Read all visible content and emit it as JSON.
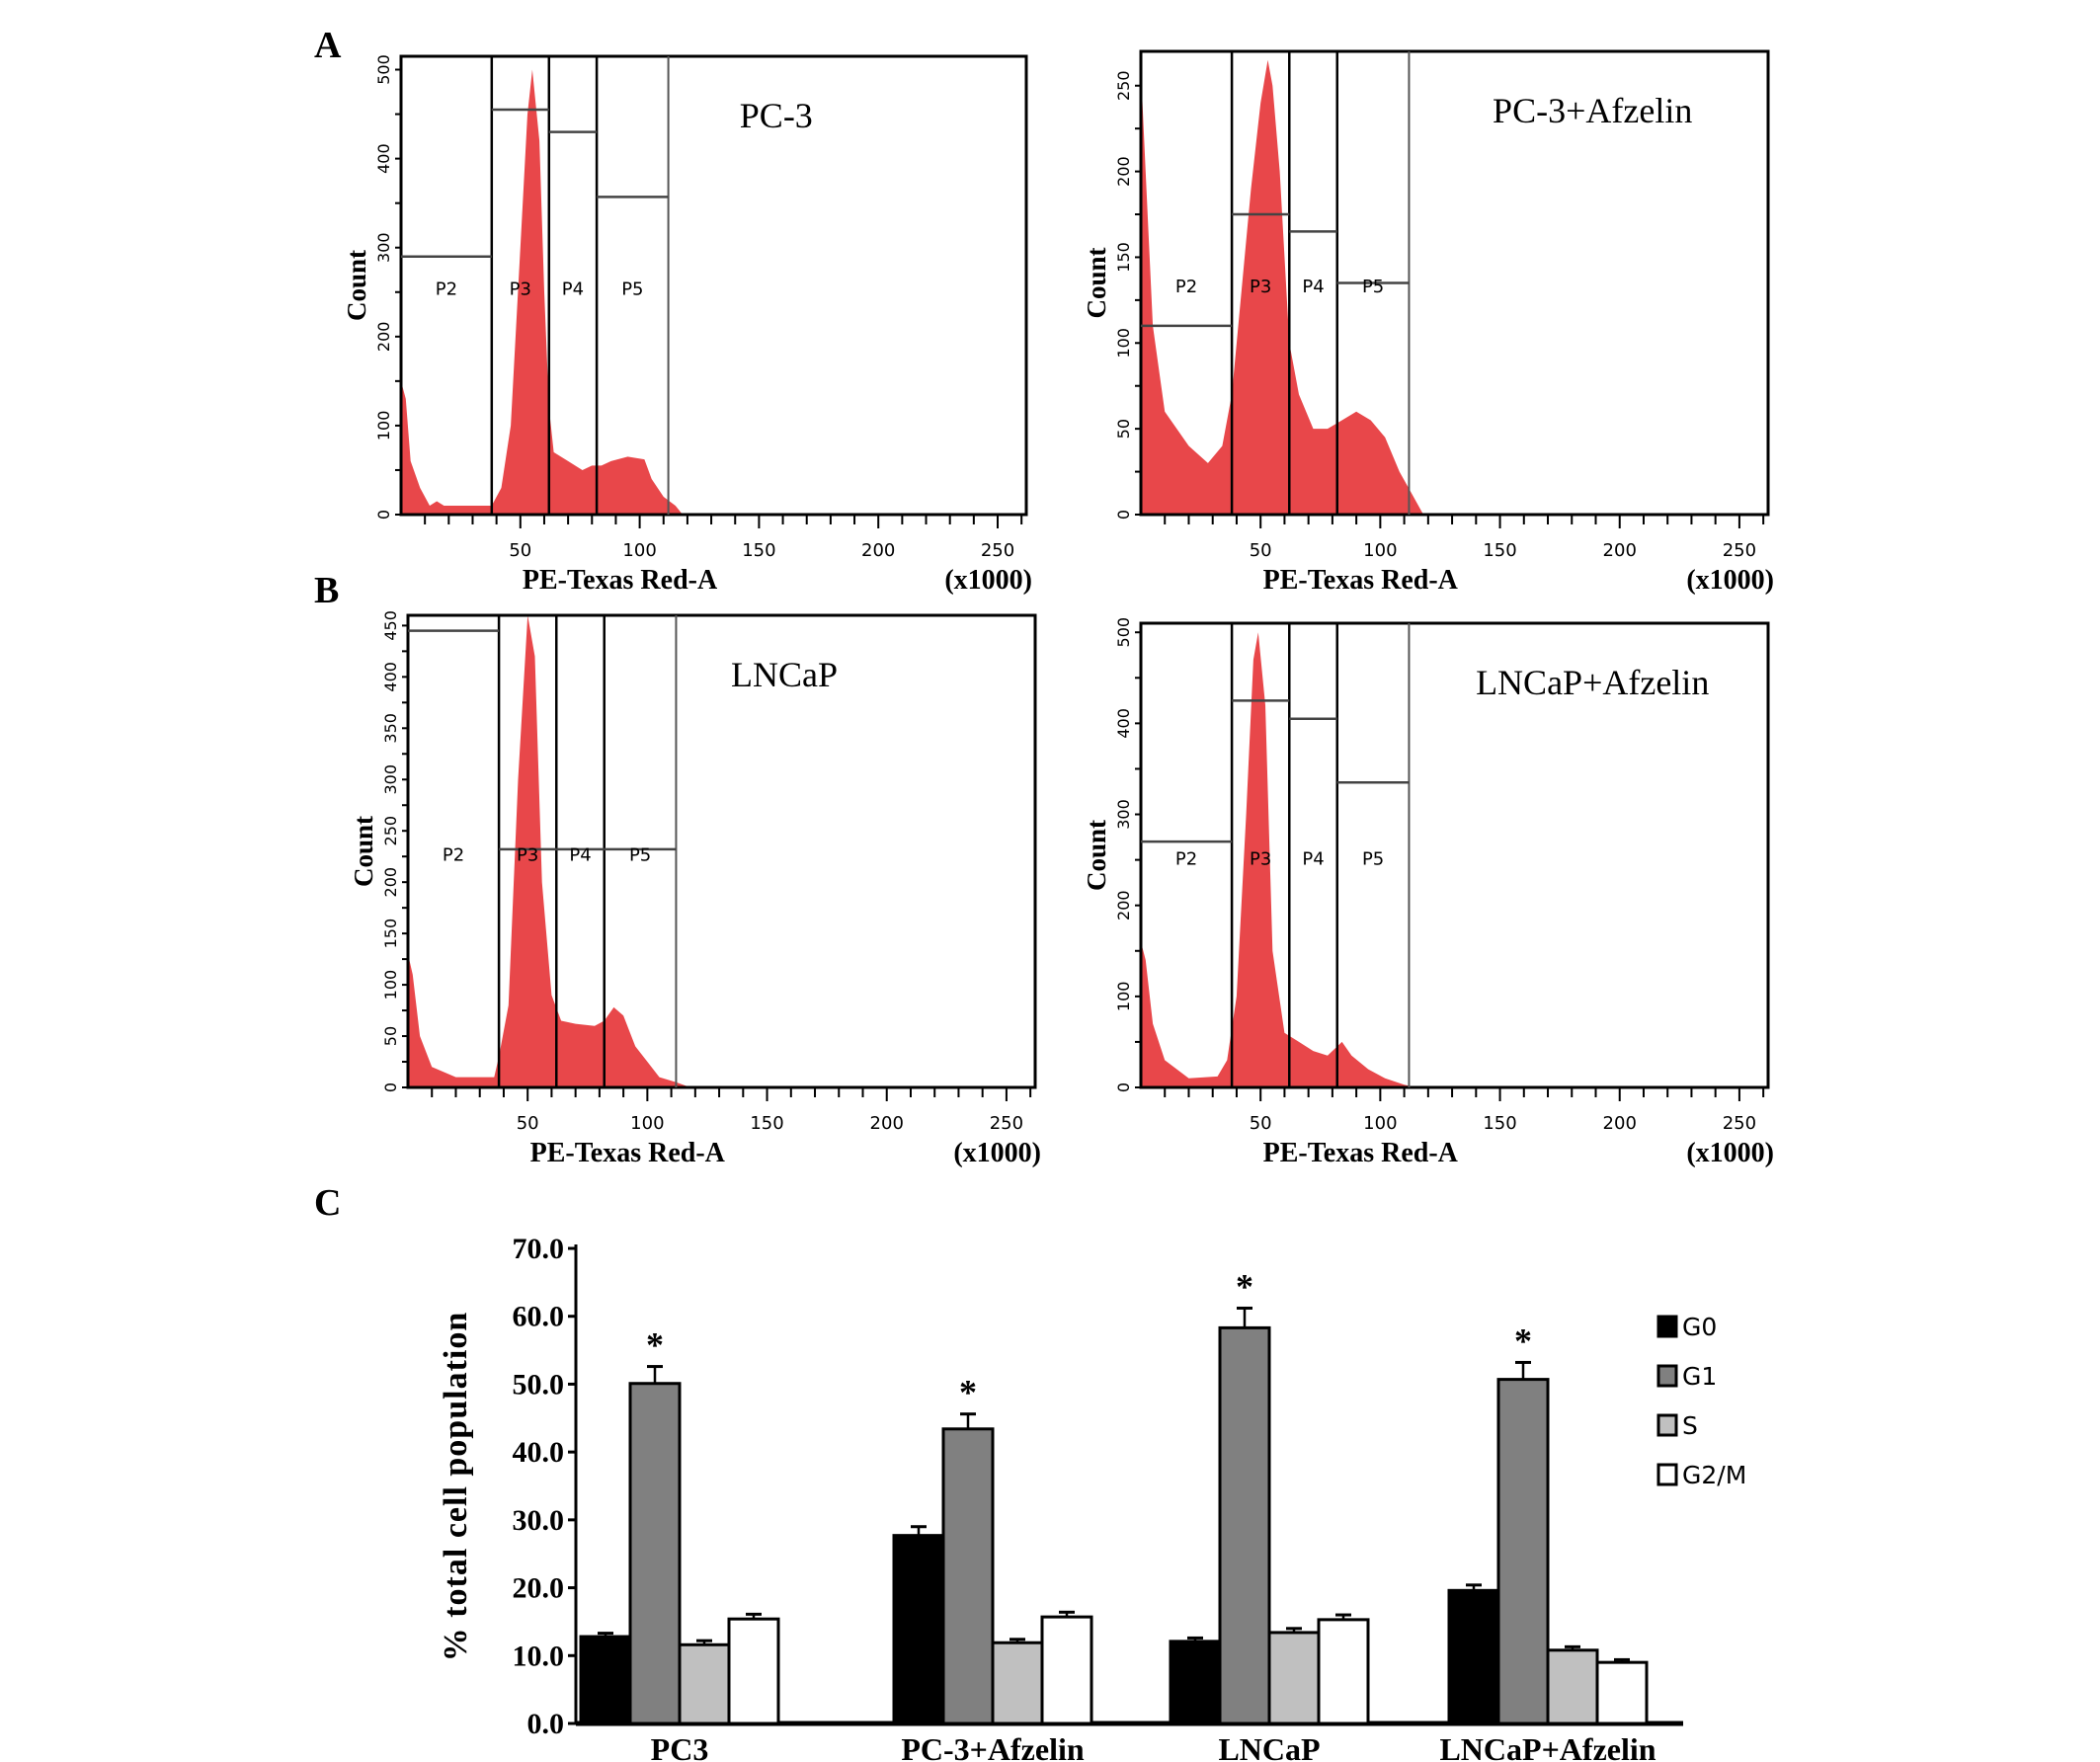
{
  "panels": {
    "a": "A",
    "b": "B",
    "c": "C"
  },
  "chart_data": [
    {
      "type": "area",
      "panel": "A",
      "title": "PC-3",
      "xlabel": "PE-Texas Red-A",
      "xunit": "(x1000)",
      "ylabel": "Count",
      "xlim": [
        0,
        262
      ],
      "ylim": [
        0,
        515
      ],
      "xticks": [
        50,
        100,
        150,
        200,
        250
      ],
      "yticks": [
        0,
        100,
        200,
        300,
        400,
        500
      ],
      "color": "#e8474a",
      "gates": [
        {
          "name": "P2",
          "from": 0,
          "to": 38,
          "level": 290
        },
        {
          "name": "P3",
          "from": 38,
          "to": 62,
          "level": 455
        },
        {
          "name": "P4",
          "from": 62,
          "to": 82,
          "level": 430
        },
        {
          "name": "P5",
          "from": 82,
          "to": 112,
          "level": 357
        }
      ],
      "points": [
        [
          0,
          150
        ],
        [
          2,
          130
        ],
        [
          4,
          60
        ],
        [
          8,
          30
        ],
        [
          12,
          10
        ],
        [
          15,
          15
        ],
        [
          18,
          10
        ],
        [
          38,
          10
        ],
        [
          42,
          30
        ],
        [
          46,
          100
        ],
        [
          50,
          300
        ],
        [
          53,
          450
        ],
        [
          55,
          500
        ],
        [
          58,
          420
        ],
        [
          60,
          250
        ],
        [
          62,
          120
        ],
        [
          64,
          70
        ],
        [
          70,
          60
        ],
        [
          76,
          50
        ],
        [
          80,
          55
        ],
        [
          84,
          55
        ],
        [
          88,
          60
        ],
        [
          95,
          65
        ],
        [
          102,
          62
        ],
        [
          105,
          40
        ],
        [
          110,
          20
        ],
        [
          115,
          10
        ],
        [
          118,
          0
        ]
      ]
    },
    {
      "type": "area",
      "panel": "A",
      "title": "PC-3+Afzelin",
      "xlabel": "PE-Texas Red-A",
      "xunit": "(x1000)",
      "ylabel": "Count",
      "xlim": [
        0,
        262
      ],
      "ylim": [
        0,
        270
      ],
      "xticks": [
        50,
        100,
        150,
        200,
        250
      ],
      "yticks": [
        0,
        50,
        100,
        150,
        200,
        250
      ],
      "color": "#e8474a",
      "gates": [
        {
          "name": "P2",
          "from": 0,
          "to": 38,
          "level": 110
        },
        {
          "name": "P3",
          "from": 38,
          "to": 62,
          "level": 175
        },
        {
          "name": "P4",
          "from": 62,
          "to": 82,
          "level": 165
        },
        {
          "name": "P5",
          "from": 82,
          "to": 112,
          "level": 135
        }
      ],
      "points": [
        [
          0,
          260
        ],
        [
          2,
          200
        ],
        [
          5,
          110
        ],
        [
          10,
          60
        ],
        [
          20,
          40
        ],
        [
          28,
          30
        ],
        [
          34,
          40
        ],
        [
          38,
          70
        ],
        [
          42,
          130
        ],
        [
          46,
          190
        ],
        [
          50,
          240
        ],
        [
          53,
          265
        ],
        [
          55,
          250
        ],
        [
          58,
          200
        ],
        [
          62,
          100
        ],
        [
          66,
          70
        ],
        [
          72,
          50
        ],
        [
          78,
          50
        ],
        [
          84,
          55
        ],
        [
          90,
          60
        ],
        [
          96,
          55
        ],
        [
          102,
          45
        ],
        [
          108,
          25
        ],
        [
          112,
          15
        ],
        [
          118,
          0
        ]
      ]
    },
    {
      "type": "area",
      "panel": "B",
      "title": "LNCaP",
      "xlabel": "PE-Texas Red-A",
      "xunit": "(x1000)",
      "ylabel": "Count",
      "xlim": [
        0,
        262
      ],
      "ylim": [
        0,
        460
      ],
      "xticks": [
        50,
        100,
        150,
        200,
        250
      ],
      "yticks": [
        0,
        50,
        100,
        150,
        200,
        250,
        300,
        350,
        400,
        450
      ],
      "color": "#e8474a",
      "gates": [
        {
          "name": "P2",
          "from": 0,
          "to": 38,
          "level": 445
        },
        {
          "name": "P3",
          "from": 38,
          "to": 62,
          "level": 232
        },
        {
          "name": "P4",
          "from": 62,
          "to": 82,
          "level": 232
        },
        {
          "name": "P5",
          "from": 82,
          "to": 112,
          "level": 232
        }
      ],
      "points": [
        [
          0,
          130
        ],
        [
          2,
          110
        ],
        [
          5,
          50
        ],
        [
          10,
          20
        ],
        [
          20,
          10
        ],
        [
          36,
          10
        ],
        [
          38,
          30
        ],
        [
          42,
          80
        ],
        [
          46,
          300
        ],
        [
          50,
          460
        ],
        [
          53,
          420
        ],
        [
          56,
          200
        ],
        [
          60,
          90
        ],
        [
          64,
          65
        ],
        [
          70,
          62
        ],
        [
          78,
          60
        ],
        [
          82,
          65
        ],
        [
          86,
          78
        ],
        [
          90,
          70
        ],
        [
          95,
          40
        ],
        [
          100,
          25
        ],
        [
          105,
          10
        ],
        [
          112,
          5
        ],
        [
          118,
          0
        ]
      ]
    },
    {
      "type": "area",
      "panel": "B",
      "title": "LNCaP+Afzelin",
      "xlabel": "PE-Texas Red-A",
      "xunit": "(x1000)",
      "ylabel": "Count",
      "xlim": [
        0,
        262
      ],
      "ylim": [
        0,
        510
      ],
      "xticks": [
        50,
        100,
        150,
        200,
        250
      ],
      "yticks": [
        0,
        100,
        200,
        300,
        400,
        500
      ],
      "color": "#e8474a",
      "gates": [
        {
          "name": "P2",
          "from": 0,
          "to": 38,
          "level": 270
        },
        {
          "name": "P3",
          "from": 38,
          "to": 62,
          "level": 425
        },
        {
          "name": "P4",
          "from": 62,
          "to": 82,
          "level": 405
        },
        {
          "name": "P5",
          "from": 82,
          "to": 112,
          "level": 335
        }
      ],
      "points": [
        [
          0,
          160
        ],
        [
          2,
          140
        ],
        [
          5,
          70
        ],
        [
          10,
          30
        ],
        [
          20,
          10
        ],
        [
          32,
          12
        ],
        [
          36,
          30
        ],
        [
          40,
          100
        ],
        [
          44,
          300
        ],
        [
          47,
          470
        ],
        [
          49,
          500
        ],
        [
          52,
          420
        ],
        [
          55,
          150
        ],
        [
          60,
          60
        ],
        [
          66,
          50
        ],
        [
          72,
          40
        ],
        [
          78,
          35
        ],
        [
          84,
          50
        ],
        [
          88,
          35
        ],
        [
          95,
          20
        ],
        [
          102,
          10
        ],
        [
          110,
          3
        ],
        [
          115,
          0
        ]
      ]
    },
    {
      "type": "bar",
      "panel": "C",
      "ylabel": "% total cell population",
      "ylim": [
        0,
        70
      ],
      "yticks": [
        "0.0",
        "10.0",
        "20.0",
        "30.0",
        "40.0",
        "50.0",
        "60.0",
        "70.0"
      ],
      "categories": [
        "PC3",
        "PC-3+Afzelin",
        "LNCaP",
        "LNCaP+Afzelin"
      ],
      "legend": "right",
      "series": [
        {
          "name": "G0",
          "color": "#000000",
          "values": [
            12.8,
            27.7,
            12.1,
            19.6
          ],
          "errors": [
            0.5,
            1.3,
            0.5,
            0.8
          ]
        },
        {
          "name": "G1",
          "color": "#808080",
          "values": [
            50.1,
            43.4,
            58.3,
            50.7
          ],
          "errors": [
            2.5,
            2.2,
            2.9,
            2.5
          ],
          "annotation": "*"
        },
        {
          "name": "S",
          "color": "#c0c0c0",
          "values": [
            11.6,
            11.9,
            13.4,
            10.8
          ],
          "errors": [
            0.6,
            0.5,
            0.6,
            0.5
          ]
        },
        {
          "name": "G2/M",
          "color": "#ffffff",
          "values": [
            15.4,
            15.7,
            15.3,
            9.0
          ],
          "errors": [
            0.7,
            0.7,
            0.7,
            0.4
          ]
        }
      ]
    }
  ]
}
